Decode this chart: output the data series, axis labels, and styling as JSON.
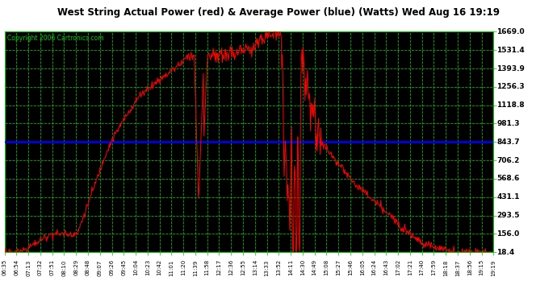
{
  "title": "West String Actual Power (red) & Average Power (blue) (Watts) Wed Aug 16 19:19",
  "copyright": "Copyright 2006 Cartronics.com",
  "y_ticks": [
    18.4,
    156.0,
    293.5,
    431.1,
    568.6,
    706.2,
    843.7,
    981.3,
    1118.8,
    1256.3,
    1393.9,
    1531.4,
    1669.0
  ],
  "avg_power": 843.7,
  "avg_line_color": "#0000FF",
  "actual_line_color": "#FF0000",
  "grid_color": "#00CC00",
  "x_labels": [
    "06:35",
    "06:54",
    "07:13",
    "07:32",
    "07:51",
    "08:10",
    "08:29",
    "08:48",
    "09:07",
    "09:26",
    "09:45",
    "10:04",
    "10:23",
    "10:42",
    "11:01",
    "11:20",
    "11:39",
    "11:58",
    "12:17",
    "12:36",
    "12:55",
    "13:14",
    "13:33",
    "13:52",
    "14:11",
    "14:30",
    "14:49",
    "15:08",
    "15:27",
    "15:46",
    "16:05",
    "16:24",
    "16:43",
    "17:02",
    "17:21",
    "17:40",
    "17:59",
    "18:18",
    "18:37",
    "18:56",
    "19:15",
    "19:19"
  ],
  "ymin": 18.4,
  "ymax": 1669.0
}
